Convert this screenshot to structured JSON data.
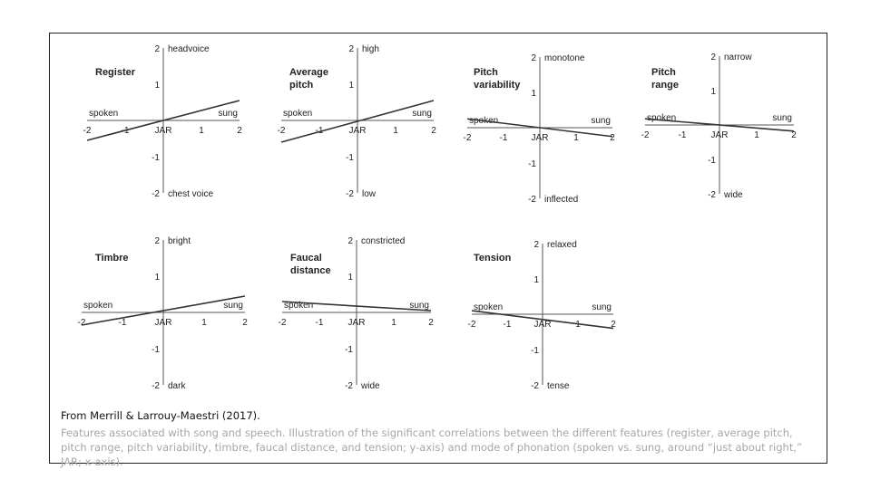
{
  "chart_data": [
    {
      "type": "line",
      "title_lines": [
        "Register"
      ],
      "x_ticks": [
        "-2",
        "-1",
        "JAR",
        "1",
        "2"
      ],
      "y_ticks": [
        "2",
        "1",
        "-1",
        "-2"
      ],
      "xlim": [
        -2,
        2
      ],
      "ylim": [
        -2,
        2
      ],
      "y_top_label": "headvoice",
      "y_bottom_label": "chest voice",
      "x_left_label": "spoken",
      "x_right_label": "sung",
      "line": {
        "x": [
          -2,
          2
        ],
        "y": [
          -0.55,
          0.55
        ]
      }
    },
    {
      "type": "line",
      "title_lines": [
        "Average",
        "pitch"
      ],
      "x_ticks": [
        "-2",
        "-1",
        "JAR",
        "1",
        "2"
      ],
      "y_ticks": [
        "2",
        "1",
        "-1",
        "-2"
      ],
      "xlim": [
        -2,
        2
      ],
      "ylim": [
        -2,
        2
      ],
      "y_top_label": "high",
      "y_bottom_label": "low",
      "x_left_label": "spoken",
      "x_right_label": "sung",
      "line": {
        "x": [
          -2,
          2
        ],
        "y": [
          -0.6,
          0.55
        ]
      }
    },
    {
      "type": "line",
      "title_lines": [
        "Pitch",
        "variability"
      ],
      "x_ticks": [
        "-2",
        "-1",
        "JAR",
        "1",
        "2"
      ],
      "y_ticks": [
        "2",
        "1",
        "-1",
        "-2"
      ],
      "xlim": [
        -2,
        2
      ],
      "ylim": [
        -2,
        2
      ],
      "y_top_label": "monotone",
      "y_bottom_label": "inflected",
      "x_left_label": "spoken",
      "x_right_label": "sung",
      "line": {
        "x": [
          -2,
          2
        ],
        "y": [
          0.25,
          -0.25
        ]
      }
    },
    {
      "type": "line",
      "title_lines": [
        "Pitch",
        "range"
      ],
      "x_ticks": [
        "-2",
        "-1",
        "JAR",
        "1",
        "2"
      ],
      "y_ticks": [
        "2",
        "1",
        "-1",
        "-2"
      ],
      "xlim": [
        -2,
        2
      ],
      "ylim": [
        -2,
        2
      ],
      "y_top_label": "narrow",
      "y_bottom_label": "wide",
      "x_left_label": "spoken",
      "x_right_label": "sung",
      "line": {
        "x": [
          -2,
          2
        ],
        "y": [
          0.18,
          -0.18
        ]
      }
    },
    {
      "type": "line",
      "title_lines": [
        "Timbre"
      ],
      "x_ticks": [
        "-2",
        "-1",
        "JAR",
        "1",
        "2"
      ],
      "y_ticks": [
        "2",
        "1",
        "-1",
        "-2"
      ],
      "xlim": [
        -2,
        2
      ],
      "ylim": [
        -2,
        2
      ],
      "y_top_label": "bright",
      "y_bottom_label": "dark",
      "x_left_label": "spoken",
      "x_right_label": "sung",
      "line": {
        "x": [
          -2,
          2
        ],
        "y": [
          -0.35,
          0.45
        ]
      }
    },
    {
      "type": "line",
      "title_lines": [
        "Faucal",
        "distance"
      ],
      "x_ticks": [
        "-2",
        "-1",
        "JAR",
        "1",
        "2"
      ],
      "y_ticks": [
        "2",
        "1",
        "-1",
        "-2"
      ],
      "xlim": [
        -2,
        2
      ],
      "ylim": [
        -2,
        2
      ],
      "y_top_label": "constricted",
      "y_bottom_label": "wide",
      "x_left_label": "spoken",
      "x_right_label": "sung",
      "line": {
        "x": [
          -2,
          2
        ],
        "y": [
          0.3,
          0.05
        ]
      }
    },
    {
      "type": "line",
      "title_lines": [
        "Tension"
      ],
      "x_ticks": [
        "-2",
        "-1",
        "JAR",
        "1",
        "2"
      ],
      "y_ticks": [
        "2",
        "1",
        "-1",
        "-2"
      ],
      "xlim": [
        -2,
        2
      ],
      "ylim": [
        -2,
        2
      ],
      "y_top_label": "relaxed",
      "y_bottom_label": "tense",
      "x_left_label": "spoken",
      "x_right_label": "sung",
      "line": {
        "x": [
          -2,
          2
        ],
        "y": [
          0.1,
          -0.4
        ]
      }
    }
  ],
  "caption": {
    "source": "From Merrill & Larrouy-Maestri (2017).",
    "description": "Features associated with song and speech. Illustration of the significant correlations between the different features (register, average pitch, pitch range, pitch variability, timbre, faucal distance, and tension; y-axis) and mode of phonation (spoken vs. sung, around “just about right,” JAR; x-axis)."
  }
}
